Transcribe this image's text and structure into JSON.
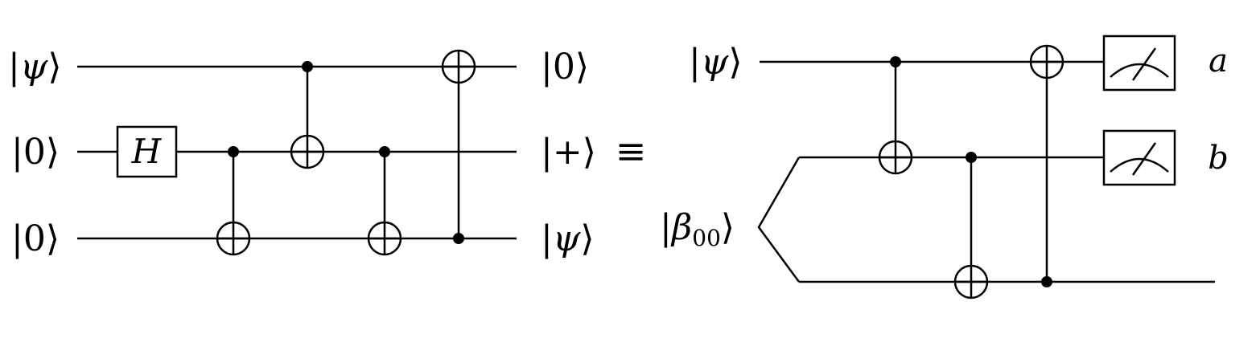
{
  "left_circuit": {
    "inputs": [
      {
        "pre": "|",
        "sym": "ψ",
        "post": "⟩"
      },
      {
        "pre": "|",
        "sym": "0",
        "post": "⟩"
      },
      {
        "pre": "|",
        "sym": "0",
        "post": "⟩"
      }
    ],
    "outputs": [
      {
        "pre": "|",
        "sym": "0",
        "post": "⟩"
      },
      {
        "pre": "|",
        "sym": "+",
        "post": "⟩"
      },
      {
        "pre": "|",
        "sym": "ψ",
        "post": "⟩"
      }
    ],
    "hadamard_label": "H",
    "gates": [
      {
        "type": "H",
        "wire": 1
      },
      {
        "type": "CNOT",
        "control": 1,
        "target": 2
      },
      {
        "type": "CNOT",
        "control": 0,
        "target": 1
      },
      {
        "type": "CNOT",
        "control": 1,
        "target": 2
      },
      {
        "type": "CNOT",
        "control": 2,
        "target": 0
      }
    ]
  },
  "equivalence_symbol": "≡",
  "right_circuit": {
    "input_psi": {
      "pre": "|",
      "sym": "ψ",
      "post": "⟩"
    },
    "input_bell": {
      "pre": "|",
      "sym": "β",
      "sub": "00",
      "post": "⟩"
    },
    "gates": [
      {
        "type": "CNOT",
        "control": 0,
        "target": 1
      },
      {
        "type": "CNOT",
        "control": 1,
        "target": 2
      },
      {
        "type": "CNOT",
        "control": 2,
        "target": 0
      }
    ],
    "measurements": [
      {
        "wire": 0,
        "output": "a"
      },
      {
        "wire": 1,
        "output": "b"
      }
    ]
  }
}
